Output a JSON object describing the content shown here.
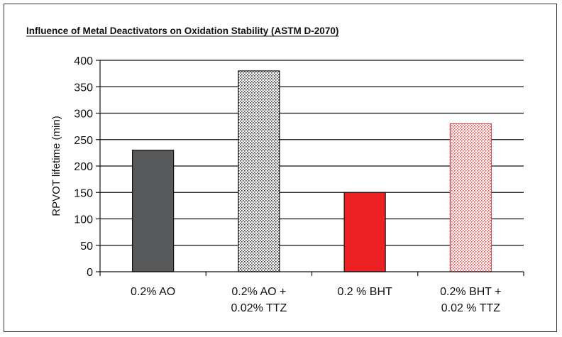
{
  "chart_data": {
    "type": "bar",
    "title": "Influence of Metal Deactivators on Oxidation Stability (ASTM D-2070)",
    "ylabel": "RPVOT lifetime (min)",
    "xlabel": "",
    "categories": [
      [
        "0.2% AO"
      ],
      [
        "0.2% AO +",
        "0.02% TTZ"
      ],
      [
        "0.2 % BHT"
      ],
      [
        "0.2% BHT +",
        "0.02 % TTZ"
      ]
    ],
    "values": [
      230,
      380,
      150,
      280
    ],
    "ylim": [
      0,
      400
    ],
    "yticks": [
      0,
      50,
      100,
      150,
      200,
      250,
      300,
      350,
      400
    ],
    "grid": true,
    "legend": "none",
    "bar_styles": [
      {
        "fill": "#58595b",
        "pattern": "solid"
      },
      {
        "fill": "#ffffff",
        "pattern": "dense-dots-dark"
      },
      {
        "fill": "#ed2024",
        "pattern": "solid"
      },
      {
        "fill": "#ffffff",
        "pattern": "dense-dots-red"
      }
    ]
  }
}
